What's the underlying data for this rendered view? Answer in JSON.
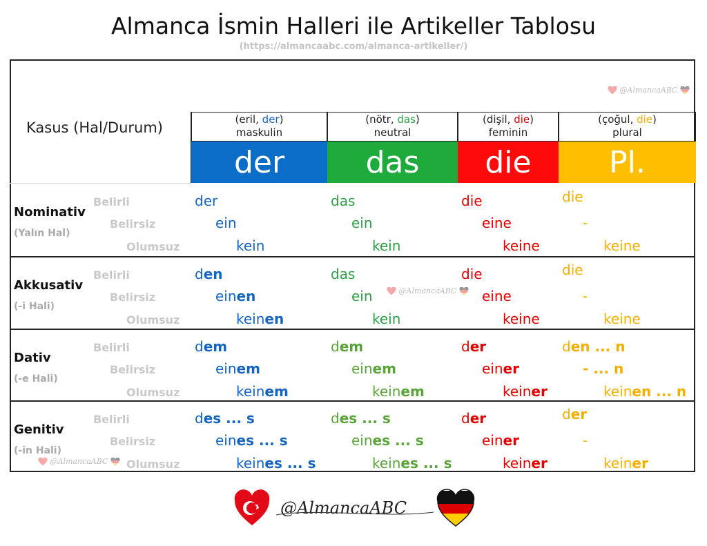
{
  "title": "Almanca İsmin Halleri ile Artikeller Tablosu",
  "subtitle": "(https://almancaabc.com/almanca-artikeller/)",
  "kasus_header": "Kasus (Hal/Durum)",
  "watermark": "@AlmancaABC",
  "logo_text": "@AlmancaABC",
  "colors": {
    "der": "#0a6ec8",
    "das": "#1faa3c",
    "die": "#ff0a0a",
    "pl": "#ffbf00",
    "der_text": "#1565c0",
    "das_text": "#2e9e48",
    "die_text": "#e00000",
    "pl_text": "#f0b000",
    "das_text_dativ": "#5aa33a"
  },
  "columns": [
    {
      "header_line1_pre": "(eril, ",
      "header_line1_art": "der",
      "header_line1_post": ")",
      "header_line2": "maskulin",
      "band": "der"
    },
    {
      "header_line1_pre": "(nötr, ",
      "header_line1_art": "das",
      "header_line1_post": ")",
      "header_line2": "neutral",
      "band": "das"
    },
    {
      "header_line1_pre": "(dişil, ",
      "header_line1_art": "die",
      "header_line1_post": ")",
      "header_line2": "feminin",
      "band": "die"
    },
    {
      "header_line1_pre": "(çoğul, ",
      "header_line1_art": "die",
      "header_line1_post": ")",
      "header_line2": "plural",
      "band": "Pl."
    }
  ],
  "row_labels": [
    "Belirli",
    "Belirsiz",
    "Olumsuz"
  ],
  "cases": [
    {
      "name": "Nominativ",
      "sub": "(Yalın Hal)",
      "cells": [
        [
          [
            "der",
            ""
          ],
          [
            "ein",
            ""
          ],
          [
            "kein",
            ""
          ]
        ],
        [
          [
            "das",
            ""
          ],
          [
            "ein",
            ""
          ],
          [
            "kein",
            ""
          ]
        ],
        [
          [
            "die",
            ""
          ],
          [
            "eine",
            ""
          ],
          [
            "keine",
            ""
          ]
        ],
        [
          [
            "die",
            ""
          ],
          [
            "-",
            ""
          ],
          [
            "keine",
            ""
          ]
        ]
      ]
    },
    {
      "name": "Akkusativ",
      "sub": "(-i Hali)",
      "cells": [
        [
          [
            "d",
            "en"
          ],
          [
            "ein",
            "en"
          ],
          [
            "kein",
            "en"
          ]
        ],
        [
          [
            "das",
            ""
          ],
          [
            "ein",
            ""
          ],
          [
            "kein",
            ""
          ]
        ],
        [
          [
            "die",
            ""
          ],
          [
            "eine",
            ""
          ],
          [
            "keine",
            ""
          ]
        ],
        [
          [
            "die",
            ""
          ],
          [
            "-",
            ""
          ],
          [
            "keine",
            ""
          ]
        ]
      ]
    },
    {
      "name": "Dativ",
      "sub": "(-e Hali)",
      "cells": [
        [
          [
            "d",
            "em"
          ],
          [
            "ein",
            "em"
          ],
          [
            "kein",
            "em"
          ]
        ],
        [
          [
            "d",
            "em"
          ],
          [
            "ein",
            "em"
          ],
          [
            "kein",
            "em"
          ]
        ],
        [
          [
            "d",
            "er"
          ],
          [
            "ein",
            "er"
          ],
          [
            "kein",
            "er"
          ]
        ],
        [
          [
            "d",
            "en ... n"
          ],
          [
            "",
            "- ... n"
          ],
          [
            "kein",
            "en ... n"
          ]
        ]
      ]
    },
    {
      "name": "Genitiv",
      "sub": "(-in Hali)",
      "cells": [
        [
          [
            "d",
            "es ... s"
          ],
          [
            "ein",
            "es ... s"
          ],
          [
            "kein",
            "es ... s"
          ]
        ],
        [
          [
            "d",
            "es ... s"
          ],
          [
            "ein",
            "es ... s"
          ],
          [
            "kein",
            "es ... s"
          ]
        ],
        [
          [
            "d",
            "er"
          ],
          [
            "ein",
            "er"
          ],
          [
            "kein",
            "er"
          ]
        ],
        [
          [
            "d",
            "er"
          ],
          [
            "-",
            ""
          ],
          [
            "kein",
            "er"
          ]
        ]
      ]
    }
  ]
}
